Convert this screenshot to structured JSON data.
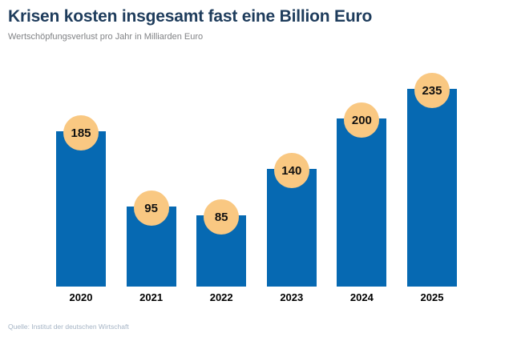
{
  "header": {
    "title": "Krisen kosten insgesamt fast eine Billion Euro",
    "subtitle": "Wertschöpfungsverlust pro Jahr in Milliarden Euro"
  },
  "footer": {
    "source": "Quelle: Institut der deutschen Wirtschaft"
  },
  "colors": {
    "bar": "#0669b2",
    "value_badge": "#f9c882",
    "value_text": "#111111",
    "title": "#1e3c5c",
    "subtitle": "#808285",
    "x_labels": "#000000",
    "source": "#a4b3c4",
    "background": "#ffffff"
  },
  "chart_data": {
    "type": "bar",
    "title": "Krisen kosten insgesamt fast eine Billion Euro",
    "subtitle": "Wertschöpfungsverlust pro Jahr in Milliarden Euro",
    "categories": [
      "2020",
      "2021",
      "2022",
      "2023",
      "2024",
      "2025"
    ],
    "values": [
      185,
      95,
      85,
      140,
      200,
      235
    ],
    "xlabel": "",
    "ylabel": "Milliarden Euro",
    "ylim": [
      0,
      235
    ],
    "grid": false,
    "legend": false,
    "value_labels_style": "circular badge centered on bar top",
    "source": "Quelle: Institut der deutschen Wirtschaft"
  }
}
